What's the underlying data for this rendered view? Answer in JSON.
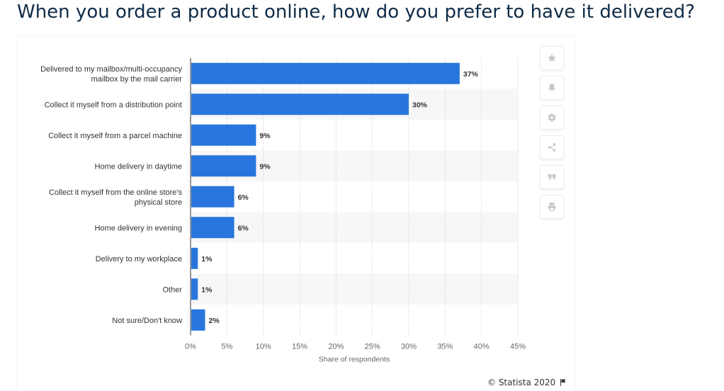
{
  "page": {
    "title": "When you order a product online, how do you prefer to have it delivered?",
    "credit": "© Statista 2020"
  },
  "toolbar": {
    "buttons": [
      {
        "name": "favorite-button",
        "icon": "star-icon"
      },
      {
        "name": "notification-button",
        "icon": "bell-icon"
      },
      {
        "name": "settings-button",
        "icon": "gear-icon"
      },
      {
        "name": "share-button",
        "icon": "share-icon"
      },
      {
        "name": "cite-button",
        "icon": "quote-icon"
      },
      {
        "name": "print-button",
        "icon": "print-icon"
      }
    ]
  },
  "chart_data": {
    "type": "bar",
    "orientation": "horizontal",
    "categories": [
      [
        "Delivered to my mailbox/multi-occupancy",
        "mailbox by the mail carrier"
      ],
      [
        "Collect it myself from a distribution point"
      ],
      [
        "Collect it myself from a parcel machine"
      ],
      [
        "Home delivery in daytime"
      ],
      [
        "Collect it myself from the online store's",
        "physical store"
      ],
      [
        "Home delivery in evening"
      ],
      [
        "Delivery to my workplace"
      ],
      [
        "Other"
      ],
      [
        "Not sure/Don't know"
      ]
    ],
    "values": [
      37,
      30,
      9,
      9,
      6,
      6,
      1,
      1,
      2
    ],
    "value_labels": [
      "37%",
      "30%",
      "9%",
      "9%",
      "6%",
      "6%",
      "1%",
      "1%",
      "2%"
    ],
    "xlabel": "Share of respondents",
    "xlim": [
      0,
      45
    ],
    "ticks": [
      0,
      5,
      10,
      15,
      20,
      25,
      30,
      35,
      40,
      45
    ],
    "tick_labels": [
      "0%",
      "5%",
      "10%",
      "15%",
      "20%",
      "25%",
      "30%",
      "35%",
      "40%",
      "45%"
    ],
    "bar_color": "#2876dd",
    "grid": true,
    "legend": "none"
  }
}
